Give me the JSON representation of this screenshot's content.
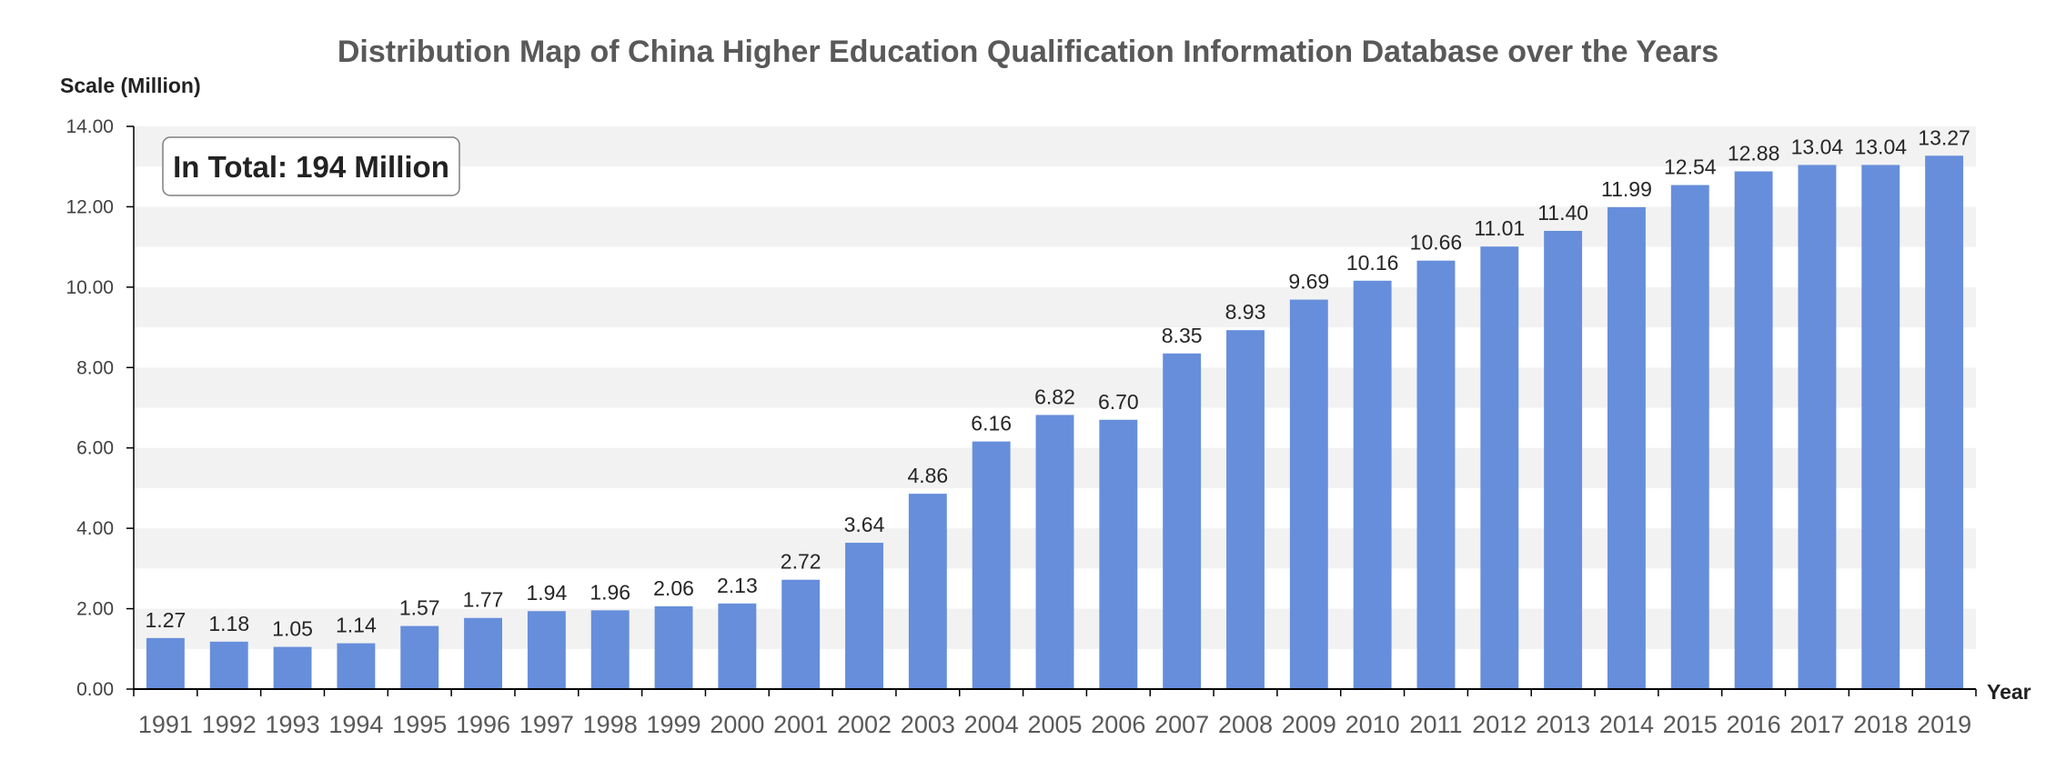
{
  "chart_data": {
    "type": "bar",
    "title": "Distribution Map of China Higher Education Qualification Information Database over the Years",
    "ylabel": "Scale (Million)",
    "xlabel": "Year",
    "annotation": "In Total: 194 Million",
    "ylim": [
      0,
      14
    ],
    "yticks": [
      "0.00",
      "2.00",
      "4.00",
      "6.00",
      "8.00",
      "10.00",
      "12.00",
      "14.00"
    ],
    "grid": "alternating horizontal bands",
    "categories": [
      "1991",
      "1992",
      "1993",
      "1994",
      "1995",
      "1996",
      "1997",
      "1998",
      "1999",
      "2000",
      "2001",
      "2002",
      "2003",
      "2004",
      "2005",
      "2006",
      "2007",
      "2008",
      "2009",
      "2010",
      "2011",
      "2012",
      "2013",
      "2014",
      "2015",
      "2016",
      "2017",
      "2018",
      "2019"
    ],
    "values": [
      1.27,
      1.18,
      1.05,
      1.14,
      1.57,
      1.77,
      1.94,
      1.96,
      2.06,
      2.13,
      2.72,
      3.64,
      4.86,
      6.16,
      6.82,
      6.7,
      8.35,
      8.93,
      9.69,
      10.16,
      10.66,
      11.01,
      11.4,
      11.99,
      12.54,
      12.88,
      13.04,
      13.04,
      13.27
    ],
    "colors": {
      "bar": "#668EDB",
      "band": "#F2F2F2",
      "axis": "#000000"
    }
  }
}
